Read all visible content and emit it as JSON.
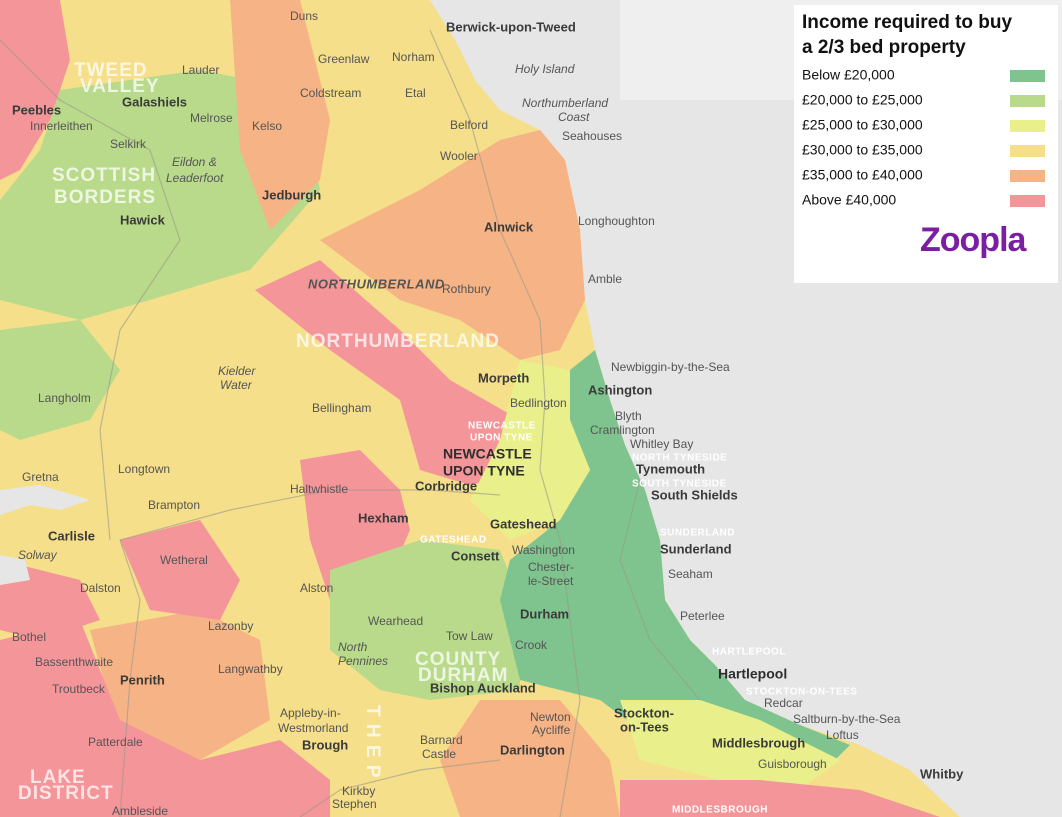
{
  "legend": {
    "title": [
      "Income required to buy",
      "a 2/3 bed property"
    ],
    "items": [
      {
        "label": "Below £20,000",
        "color": "#7fc48e"
      },
      {
        "label": "£20,000 to £25,000",
        "color": "#b9da8a"
      },
      {
        "label": "£25,000 to £30,000",
        "color": "#e9ef8a"
      },
      {
        "label": "£30,000 to £35,000",
        "color": "#f6df8a"
      },
      {
        "label": "£35,000 to £40,000",
        "color": "#f6b385"
      },
      {
        "label": "Above £40,000",
        "color": "#f4959a"
      }
    ],
    "brand": "Zoopla"
  },
  "places": [
    "Berwick-upon-Tweed",
    "Holy Island",
    "Northumberland",
    "Coast",
    "Seahouses",
    "Duns",
    "Lauder",
    "Greenlaw",
    "Norham",
    "Coldstream",
    "Etal",
    "Galashiels",
    "Peebles",
    "Innerleithen",
    "Melrose",
    "Kelso",
    "Belford",
    "Selkirk",
    "Wooler",
    "Eildon &",
    "Leaderfoot",
    "Jedburgh",
    "Hawick",
    "Alnwick",
    "Longhoughton",
    "Amble",
    "Rothbury",
    "NORTHUMBERLAND",
    "Morpeth",
    "Newbiggin-by-the-Sea",
    "Ashington",
    "Bedlington",
    "Blyth",
    "Cramlington",
    "Whitley Bay",
    "Langholm",
    "Bellingham",
    "Kielder",
    "Water",
    "NEWCASTLE",
    "UPON TYNE",
    "Tynemouth",
    "South Shields",
    "Longtown",
    "Haltwhistle",
    "Corbridge",
    "Brampton",
    "Hexham",
    "Gateshead",
    "Carlisle",
    "Consett",
    "Washington",
    "Sunderland",
    "Chester-",
    "le-Street",
    "Wetheral",
    "Seaham",
    "Dalston",
    "Alston",
    "Durham",
    "Peterlee",
    "Lazonby",
    "Wearhead",
    "Tow Law",
    "Bothel",
    "Crook",
    "Hartlepool",
    "Langwathby",
    "Bassenthwaite",
    "North",
    "Pennines",
    "Penrith",
    "Troutbeck",
    "Bishop Auckland",
    "Redcar",
    "Saltburn-by-the-Sea",
    "Appleby-in-",
    "Westmorland",
    "Newton",
    "Aycliffe",
    "Stockton-",
    "on-Tees",
    "Middlesbrough",
    "Loftus",
    "Brough",
    "Barnard",
    "Castle",
    "Darlington",
    "Patterdale",
    "Guisborough",
    "Whitby",
    "Kirkby",
    "Stephen",
    "Ambleside",
    "Solway",
    "Gretna"
  ],
  "regions": [
    "TWEED",
    "VALLEY",
    "SCOTTISH",
    "BORDERS",
    "NORTHUMBERLAND",
    "COUNTY",
    "DURHAM",
    "LAKE",
    "DISTRICT",
    "T H E   P"
  ],
  "councils": [
    "NORTH TYNESIDE",
    "SOUTH TYNESIDE",
    "SUNDERLAND",
    "HARTLEPOOL",
    "STOCKTON-ON-TEES",
    "GATESHEAD",
    "NEWCASTLE",
    "UPON TYNE",
    "MIDDLESBROUGH"
  ]
}
